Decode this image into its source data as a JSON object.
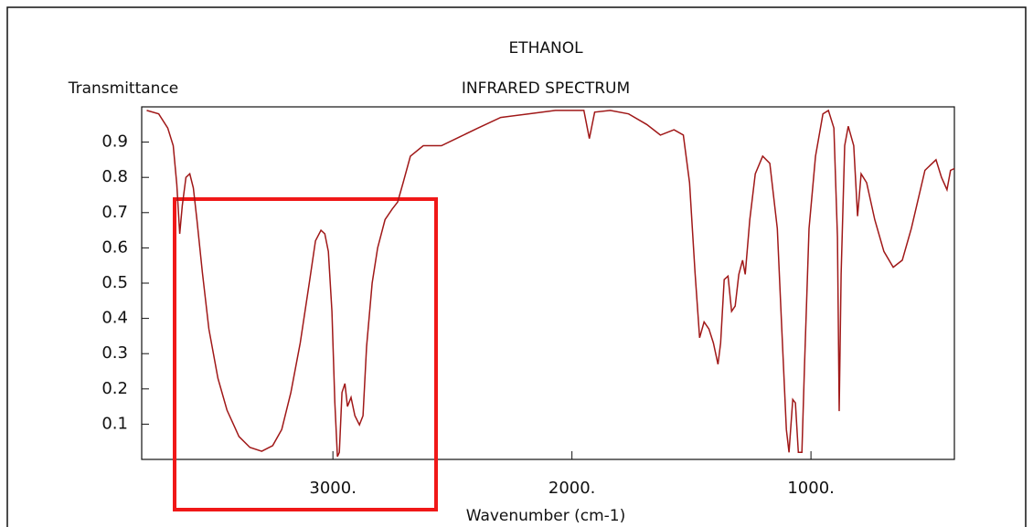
{
  "chart_data": {
    "type": "line",
    "title": "ETHANOL",
    "subtitle": "INFRARED SPECTRUM",
    "y_label": "Transmittance",
    "x_label": "Wavenumber (cm-1)",
    "xlim": [
      3800,
      400
    ],
    "ylim": [
      0,
      1
    ],
    "xticks": [
      {
        "value": 3000,
        "label": "3000."
      },
      {
        "value": 2000,
        "label": "2000."
      },
      {
        "value": 1000,
        "label": "1000."
      }
    ],
    "yticks": [
      0.1,
      0.2,
      0.3,
      0.4,
      0.5,
      0.6,
      0.7,
      0.8,
      0.9
    ],
    "x": [
      3779,
      3729,
      3691,
      3668,
      3653,
      3641,
      3630,
      3615,
      3599,
      3584,
      3569,
      3546,
      3519,
      3481,
      3443,
      3393,
      3347,
      3298,
      3252,
      3214,
      3176,
      3137,
      3099,
      3073,
      3050,
      3034,
      3019,
      3004,
      2992,
      2981,
      2973,
      2962,
      2950,
      2939,
      2924,
      2908,
      2889,
      2874,
      2859,
      2836,
      2813,
      2782,
      2752,
      2729,
      2706,
      2676,
      2622,
      2546,
      2469,
      2393,
      2298,
      2183,
      2069,
      1992,
      1950,
      1927,
      1905,
      1840,
      1763,
      1687,
      1630,
      1573,
      1534,
      1508,
      1485,
      1466,
      1447,
      1427,
      1408,
      1389,
      1378,
      1363,
      1347,
      1332,
      1317,
      1302,
      1286,
      1275,
      1256,
      1233,
      1202,
      1172,
      1141,
      1122,
      1103,
      1092,
      1076,
      1065,
      1053,
      1038,
      1027,
      1008,
      981,
      950,
      927,
      904,
      889,
      882,
      874,
      859,
      844,
      821,
      805,
      790,
      767,
      733,
      695,
      656,
      618,
      580,
      523,
      477,
      454,
      431,
      416,
      400
    ],
    "series": [
      {
        "name": "Ethanol",
        "color": "#a01818",
        "values": [
          0.99,
          0.98,
          0.94,
          0.89,
          0.78,
          0.64,
          0.72,
          0.8,
          0.81,
          0.77,
          0.68,
          0.53,
          0.37,
          0.23,
          0.14,
          0.065,
          0.034,
          0.023,
          0.039,
          0.085,
          0.19,
          0.33,
          0.5,
          0.62,
          0.65,
          0.64,
          0.59,
          0.42,
          0.16,
          0.008,
          0.02,
          0.19,
          0.215,
          0.15,
          0.176,
          0.124,
          0.098,
          0.124,
          0.32,
          0.5,
          0.6,
          0.68,
          0.71,
          0.73,
          0.785,
          0.86,
          0.89,
          0.89,
          0.915,
          0.94,
          0.97,
          0.98,
          0.99,
          0.99,
          0.99,
          0.91,
          0.985,
          0.99,
          0.98,
          0.95,
          0.92,
          0.935,
          0.92,
          0.785,
          0.53,
          0.345,
          0.39,
          0.37,
          0.33,
          0.27,
          0.33,
          0.51,
          0.52,
          0.42,
          0.435,
          0.525,
          0.565,
          0.525,
          0.68,
          0.81,
          0.86,
          0.84,
          0.655,
          0.37,
          0.085,
          0.02,
          0.17,
          0.16,
          0.02,
          0.02,
          0.27,
          0.655,
          0.86,
          0.98,
          0.99,
          0.94,
          0.63,
          0.137,
          0.525,
          0.89,
          0.945,
          0.89,
          0.69,
          0.81,
          0.785,
          0.68,
          0.59,
          0.545,
          0.565,
          0.655,
          0.82,
          0.85,
          0.8,
          0.765,
          0.82,
          0.825
        ]
      }
    ]
  }
}
